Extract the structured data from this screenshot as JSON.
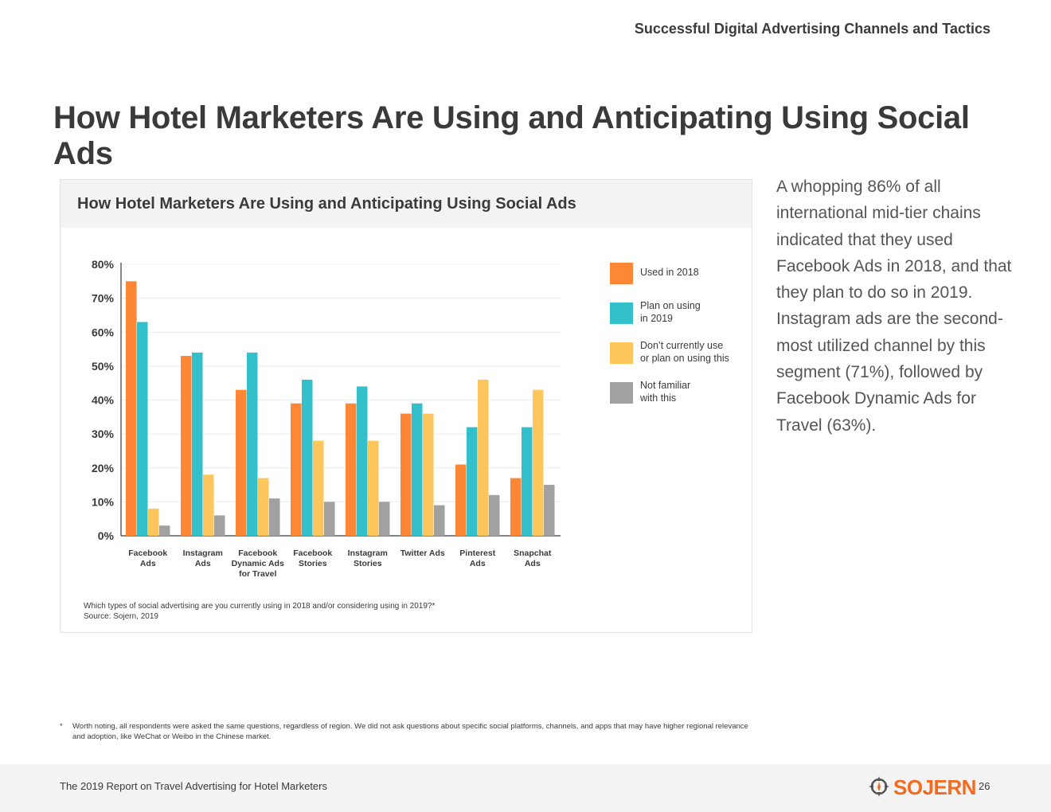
{
  "section_header": "Successful Digital Advertising Channels and Tactics",
  "page_title": "How Hotel Marketers Are Using and Anticipating Using Social Ads",
  "chart_card": {
    "question_note": "Which types of social advertising are you currently using in 2018 and/or considering using in 2019?*",
    "source_note": "Source: Sojern, 2019"
  },
  "chart_data": {
    "type": "bar",
    "title": "How Hotel Marketers Are Using and Anticipating Using Social Ads",
    "categories": [
      [
        "Facebook",
        "Ads"
      ],
      [
        "Instagram",
        "Ads"
      ],
      [
        "Facebook",
        "Dynamic Ads",
        "for Travel"
      ],
      [
        "Facebook",
        "Stories"
      ],
      [
        "Instagram",
        "Stories"
      ],
      [
        "Twitter Ads"
      ],
      [
        "Pinterest",
        "Ads"
      ],
      [
        "Snapchat",
        "Ads"
      ]
    ],
    "series": [
      {
        "name": "Used in 2018",
        "color": "#FD8637",
        "values": [
          75,
          53,
          43,
          39,
          39,
          36,
          21,
          17
        ]
      },
      {
        "name": "Plan on using in 2019",
        "color": "#34C0CB",
        "values": [
          63,
          54,
          54,
          46,
          44,
          39,
          32,
          32
        ]
      },
      {
        "name": "Don't currently use or plan on using this",
        "color": "#FEC65C",
        "values": [
          8,
          18,
          17,
          28,
          28,
          36,
          46,
          43
        ]
      },
      {
        "name": "Not familiar with this",
        "color": "#A1A1A1",
        "values": [
          3,
          6,
          11,
          10,
          10,
          9,
          12,
          15
        ]
      }
    ],
    "legend_lines": [
      [
        "Used in 2018"
      ],
      [
        "Plan on using",
        "in 2019"
      ],
      [
        "Don’t currently use",
        "or plan on using this"
      ],
      [
        "Not familiar",
        "with this"
      ]
    ],
    "yticks": [
      "0%",
      "10%",
      "20%",
      "30%",
      "40%",
      "50%",
      "60%",
      "70%",
      "80%"
    ],
    "ylim": [
      0,
      80
    ],
    "xlabel": "",
    "ylabel": "",
    "grid": true,
    "legend_position": "right"
  },
  "side_text": "A whopping 86% of all international mid-tier chains indicated that they used Facebook Ads in 2018, and that they plan to do so in 2019. Instagram ads are the second-most utilized channel by this segment (71%), followed by Facebook Dynamic Ads for Travel (63%).",
  "footnote": {
    "marker": "*",
    "text": "Worth noting, all respondents were asked the same questions, regardless of region. We did not ask questions about specific social platforms, channels, and apps that may have higher regional relevance and adoption, like WeChat or Weibo in the Chinese market."
  },
  "footer": {
    "report_title": "The 2019 Report on Travel Advertising for Hotel Marketers",
    "brand_name": "SOJERN",
    "brand_color": "#F26B21",
    "brand_icon": "compass-crosshair-icon",
    "page_number": "26"
  }
}
